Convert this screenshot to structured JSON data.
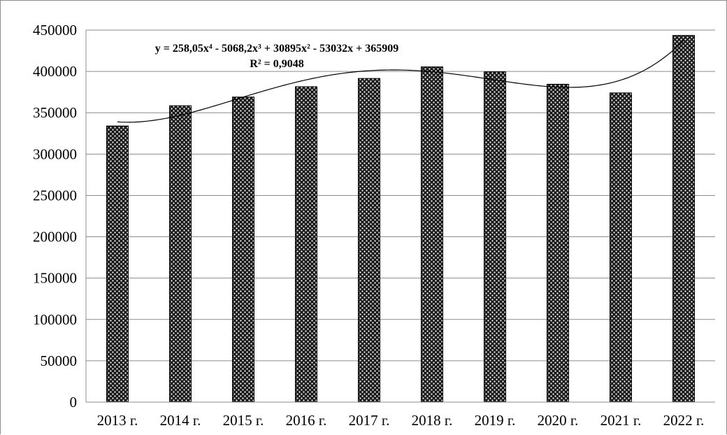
{
  "chart_data": {
    "type": "bar",
    "title": "",
    "xlabel": "",
    "ylabel": "",
    "categories": [
      "2013 г.",
      "2014 г.",
      "2015 г.",
      "2016 г.",
      "2017 г.",
      "2018 г.",
      "2019 г.",
      "2020 г.",
      "2021 г.",
      "2022 г."
    ],
    "series": [
      {
        "values": [
          334000,
          358500,
          369000,
          381500,
          391500,
          405500,
          399500,
          384500,
          374000,
          443500
        ]
      }
    ],
    "ylim": [
      0,
      450000
    ],
    "yticks": [
      "0",
      "50000",
      "100000",
      "150000",
      "200000",
      "250000",
      "300000",
      "350000",
      "400000",
      "450000"
    ],
    "grid": true,
    "legend": "none",
    "trendline": {
      "type": "polynomial",
      "order": 4,
      "coefficients": [
        258.05,
        -5068.2,
        30895,
        -53032,
        365909
      ],
      "equation_label": "y = 258,05x⁴ - 5068,2x³ + 30895x² - 53032x + 365909",
      "r2_label": "R² = 0,9048"
    },
    "colors": {
      "bar_fill": "#1a1a1a",
      "bar_dots": "#ffffff",
      "grid": "#8c8c8c",
      "axis": "#8c8c8c",
      "trend": "#000000"
    }
  }
}
